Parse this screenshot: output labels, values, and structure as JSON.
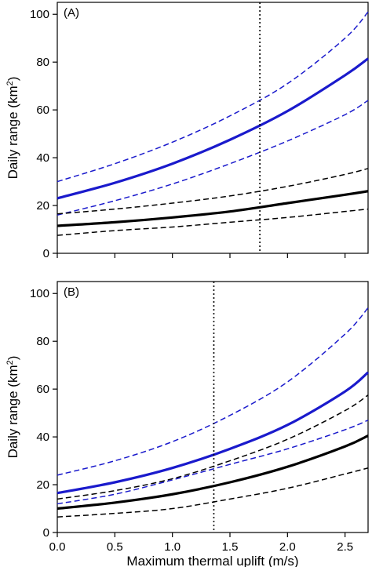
{
  "chart_data": [
    {
      "type": "line",
      "panel_label": "(A)",
      "xlabel": "",
      "ylabel": "Daily range (km",
      "ylabel_sup": "2",
      "ylabel_close": ")",
      "xlim": [
        0,
        2.7
      ],
      "ylim": [
        0,
        105
      ],
      "xticks": [
        0,
        0.5,
        1.0,
        1.5,
        2.0,
        2.5
      ],
      "xtick_labels": false,
      "yticks": [
        0,
        20,
        40,
        60,
        80,
        100
      ],
      "ytick_labels": [
        "0",
        "20",
        "40",
        "60",
        "80",
        "100"
      ],
      "grid": false,
      "legend": false,
      "reference_line_x": 1.76,
      "series": [
        {
          "color": "#1a1acc",
          "style": "solid",
          "x": [
            0,
            0.5,
            1.0,
            1.5,
            2.0,
            2.5,
            2.7
          ],
          "y": [
            23,
            29.5,
            37.5,
            47.5,
            59.5,
            74.5,
            81.5
          ]
        },
        {
          "color": "#1a1acc",
          "style": "dashed",
          "x": [
            0,
            0.5,
            1.0,
            1.5,
            2.0,
            2.5,
            2.7
          ],
          "y": [
            30,
            37.5,
            46.5,
            57.5,
            71,
            90,
            101
          ]
        },
        {
          "color": "#1a1acc",
          "style": "dashed",
          "x": [
            0,
            0.5,
            1.0,
            1.5,
            2.0,
            2.5,
            2.7
          ],
          "y": [
            16,
            22,
            29,
            37.5,
            47,
            58,
            64
          ]
        },
        {
          "color": "#000000",
          "style": "solid",
          "x": [
            0,
            0.5,
            1.0,
            1.5,
            2.0,
            2.5,
            2.7
          ],
          "y": [
            11.5,
            13,
            15,
            17.5,
            21,
            24.5,
            26
          ]
        },
        {
          "color": "#000000",
          "style": "dashed",
          "x": [
            0,
            0.5,
            1.0,
            1.5,
            2.0,
            2.5,
            2.7
          ],
          "y": [
            16.5,
            18.5,
            21,
            24,
            28,
            33,
            35.5
          ]
        },
        {
          "color": "#000000",
          "style": "dashed",
          "x": [
            0,
            0.5,
            1.0,
            1.5,
            2.0,
            2.5,
            2.7
          ],
          "y": [
            7.5,
            9.5,
            11,
            13,
            15,
            17.5,
            18.5
          ]
        }
      ]
    },
    {
      "type": "line",
      "panel_label": "(B)",
      "xlabel": "Maximum thermal uplift (m/s)",
      "ylabel": "Daily range (km",
      "ylabel_sup": "2",
      "ylabel_close": ")",
      "xlim": [
        0,
        2.7
      ],
      "ylim": [
        0,
        105
      ],
      "xticks": [
        0,
        0.5,
        1.0,
        1.5,
        2.0,
        2.5
      ],
      "xtick_labels": [
        "0.0",
        "0.5",
        "1.0",
        "1.5",
        "2.0",
        "2.5"
      ],
      "yticks": [
        0,
        20,
        40,
        60,
        80,
        100
      ],
      "ytick_labels": [
        "0",
        "20",
        "40",
        "60",
        "80",
        "100"
      ],
      "grid": false,
      "legend": false,
      "reference_line_x": 1.36,
      "series": [
        {
          "color": "#1a1acc",
          "style": "solid",
          "x": [
            0,
            0.5,
            1.0,
            1.5,
            2.0,
            2.5,
            2.7
          ],
          "y": [
            16.5,
            21,
            27,
            35,
            45,
            59,
            67
          ]
        },
        {
          "color": "#1a1acc",
          "style": "dashed",
          "x": [
            0,
            0.5,
            1.0,
            1.5,
            2.0,
            2.5,
            2.7
          ],
          "y": [
            24,
            30,
            38,
            49,
            63,
            83,
            94
          ]
        },
        {
          "color": "#1a1acc",
          "style": "dashed",
          "x": [
            0,
            0.5,
            1.0,
            1.5,
            2.0,
            2.5,
            2.7
          ],
          "y": [
            12,
            16,
            22,
            28.5,
            35,
            43,
            47
          ]
        },
        {
          "color": "#000000",
          "style": "solid",
          "x": [
            0,
            0.5,
            1.0,
            1.5,
            2.0,
            2.5,
            2.7
          ],
          "y": [
            10,
            12.5,
            16,
            21,
            27.5,
            36,
            40.5
          ]
        },
        {
          "color": "#000000",
          "style": "dashed",
          "x": [
            0,
            0.5,
            1.0,
            1.5,
            2.0,
            2.5,
            2.7
          ],
          "y": [
            14,
            17.5,
            22.5,
            30,
            39,
            51,
            57.5
          ]
        },
        {
          "color": "#000000",
          "style": "dashed",
          "x": [
            0,
            0.5,
            1.0,
            1.5,
            2.0,
            2.5,
            2.7
          ],
          "y": [
            6.5,
            8,
            10,
            14,
            18.5,
            24.5,
            27
          ]
        }
      ]
    }
  ]
}
